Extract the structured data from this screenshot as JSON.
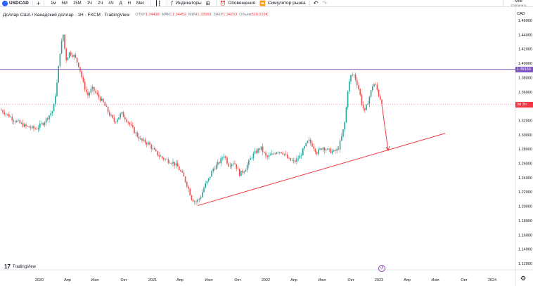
{
  "toolbar": {
    "symbol": "USDCAD",
    "add_symbol": "+",
    "timeframes": [
      "1м",
      "5М",
      "15М",
      "1Ч",
      "2Ч",
      "4Ч",
      "Д",
      "Н",
      "Мес"
    ],
    "indicators_label": "Индикаторы",
    "alerts_label": "Оповещения",
    "replay_label": "Симулятор рынка",
    "save_label": "Мое",
    "save_sublabel": "Сохранить"
  },
  "legend": {
    "title": "Доллар США / Канадский доллар · 1Н · FXCM · TradingView",
    "ohlc": [
      {
        "label": "ОТКР",
        "value": "1.34428"
      },
      {
        "label": "МАКС",
        "value": "1.34452"
      },
      {
        "label": "МИН",
        "value": "1.33569"
      },
      {
        "label": "ЗАКР",
        "value": "1.34203"
      },
      {
        "label": "Объем",
        "value": "516.019K"
      }
    ]
  },
  "price_axis": {
    "currency": "CAD",
    "labels": [
      "1.46000",
      "1.44000",
      "1.42000",
      "1.40000",
      "1.38000",
      "1.36000",
      "1.34000",
      "1.32000",
      "1.30000",
      "1.28000",
      "1.26000",
      "1.24000",
      "1.22000",
      "1.20000",
      "1.18000",
      "1.16000",
      "1.14000",
      "1.12000"
    ],
    "current_price_tag": "1.39159",
    "current_price_color": "#7e57c2",
    "countdown_tag": "3d 3h",
    "countdown_color": "#f23645"
  },
  "time_axis": {
    "labels": [
      "2020",
      "Апр",
      "Июл",
      "Окт",
      "2021",
      "Апр",
      "Июл",
      "Окт",
      "2022",
      "Апр",
      "Июл",
      "Окт",
      "2023",
      "Апр",
      "Июл",
      "Окт",
      "2024"
    ]
  },
  "branding": {
    "logo_text": "TradingView",
    "logo_mark": "17"
  },
  "chart_data": {
    "type": "candlestick",
    "symbol": "USDCAD",
    "ylim": [
      1.11,
      1.47
    ],
    "up_color": "#26a69a",
    "down_color": "#ef5350",
    "annotations": {
      "trendline": {
        "from": [
          "2021-05",
          1.201
        ],
        "to": [
          "2023-07",
          1.302
        ],
        "color": "#f23645"
      },
      "projection_arrow": {
        "from": [
          "2023-01",
          1.342
        ],
        "to": [
          "2023-01",
          1.278
        ],
        "color": "#f23645"
      },
      "horizontal_line": {
        "y": 1.3916,
        "color": "#7e57c2"
      }
    }
  }
}
